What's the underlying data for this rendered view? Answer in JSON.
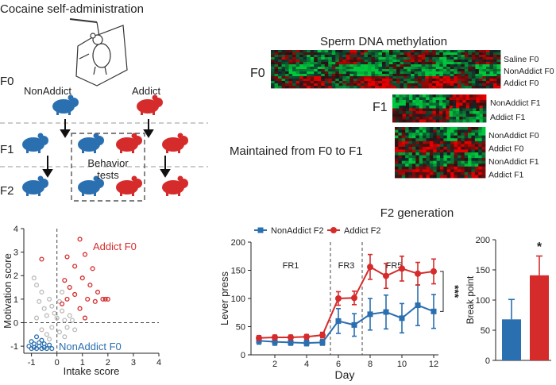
{
  "panel_a": {
    "title": "Cocaine self-administration",
    "gen_f0": "F0",
    "gen_f1": "F1",
    "gen_f2": "F2",
    "nonaddict_label": "NonAddict",
    "addict_label": "Addict",
    "behavior_label_1": "Behavior",
    "behavior_label_2": "tests",
    "colors": {
      "nonaddict": "#2a6fb0",
      "addict": "#d62b2b"
    }
  },
  "panel_b": {
    "title": "Sperm DNA methylation",
    "f0_label": "F0",
    "f0_rows": [
      "Saline F0",
      "NonAddict F0",
      "Addict F0"
    ],
    "f1_label": "F1",
    "f1_rows": [
      "NonAddict F1",
      "Addict F1"
    ],
    "maintained_label": "Maintained from F0 to F1",
    "maintained_rows": [
      "NonAddict F0",
      "Addict F0",
      "NonAddict F1",
      "Addict F1"
    ],
    "colors": {
      "high": "#e0262a",
      "low": "#2bb34a",
      "mid": "#000000"
    }
  },
  "chart_data": [
    {
      "type": "scatter",
      "xlabel": "Intake score",
      "ylabel": "Motivation score",
      "xlim": [
        -1.3,
        4
      ],
      "ylim": [
        -1.3,
        4
      ],
      "xticks": [
        "-1",
        "0",
        "1",
        "2",
        "3",
        "4"
      ],
      "yticks": [
        "-1",
        "0",
        "1",
        "2",
        "3",
        "4"
      ],
      "annotations": [
        "Addict F0",
        "NonAddict F0"
      ],
      "series": [
        {
          "color": "#2a6fb0",
          "points": [
            [
              -1.0,
              -1.1
            ],
            [
              -0.9,
              -1.05
            ],
            [
              -0.8,
              -1.1
            ],
            [
              -0.7,
              -1.0
            ],
            [
              -0.6,
              -1.1
            ],
            [
              -0.5,
              -1.05
            ],
            [
              -0.4,
              -1.1
            ],
            [
              -1.0,
              -0.8
            ],
            [
              -0.9,
              -0.9
            ],
            [
              -0.7,
              -0.85
            ],
            [
              -0.5,
              -0.9
            ],
            [
              -0.3,
              -0.95
            ],
            [
              -0.2,
              -1.1
            ],
            [
              -0.8,
              -0.6
            ],
            [
              -0.6,
              -0.75
            ],
            [
              -1.1,
              -1.0
            ]
          ]
        },
        {
          "color": "#bbbbbb",
          "points": [
            [
              -0.9,
              1.9
            ],
            [
              -0.8,
              1.6
            ],
            [
              -0.6,
              1.3
            ],
            [
              -0.7,
              0.9
            ],
            [
              -0.5,
              0.6
            ],
            [
              -0.4,
              0.3
            ],
            [
              -0.8,
              0.2
            ],
            [
              -0.3,
              1.0
            ],
            [
              -0.2,
              0.7
            ],
            [
              -0.1,
              0.4
            ],
            [
              0.1,
              0.9
            ],
            [
              0.2,
              0.5
            ],
            [
              0.3,
              0.1
            ],
            [
              0.4,
              -0.2
            ],
            [
              0.5,
              0.3
            ],
            [
              -0.6,
              -0.3
            ],
            [
              -0.4,
              -0.5
            ],
            [
              0.1,
              -0.4
            ],
            [
              0.3,
              -0.6
            ],
            [
              -0.2,
              -0.2
            ],
            [
              0.6,
              0.1
            ],
            [
              0.7,
              -0.3
            ],
            [
              0.2,
              1.3
            ],
            [
              -0.3,
              -0.7
            ],
            [
              0.0,
              0.2
            ]
          ]
        },
        {
          "color": "#d62b2b",
          "points": [
            [
              -0.6,
              2.7
            ],
            [
              0.4,
              2.8
            ],
            [
              0.9,
              3.55
            ],
            [
              0.7,
              2.4
            ],
            [
              1.1,
              2.9
            ],
            [
              0.3,
              1.8
            ],
            [
              0.5,
              1.5
            ],
            [
              1.0,
              1.9
            ],
            [
              1.3,
              1.6
            ],
            [
              1.6,
              1.3
            ],
            [
              1.8,
              1.0
            ],
            [
              1.5,
              0.9
            ],
            [
              1.9,
              1.0
            ],
            [
              2.0,
              1.0
            ],
            [
              1.2,
              1.0
            ],
            [
              0.9,
              0.6
            ],
            [
              1.1,
              0.2
            ],
            [
              0.2,
              0.8
            ],
            [
              0.7,
              1.2
            ],
            [
              1.4,
              2.3
            ],
            [
              0.4,
              1.0
            ]
          ]
        }
      ]
    },
    {
      "type": "line",
      "title": "F2 generation",
      "xlabel": "Day",
      "ylabel": "Lever press",
      "xlim": [
        0.5,
        12.3
      ],
      "ylim": [
        0,
        200
      ],
      "xticks": [
        2,
        4,
        6,
        8,
        10,
        12
      ],
      "yticks": [
        0,
        50,
        100,
        150,
        200
      ],
      "phase_labels": [
        "FR1",
        "FR3",
        "FR5"
      ],
      "phase_dividers": [
        5.5,
        7.5
      ],
      "significance": "***",
      "legend": "top-left",
      "series": [
        {
          "name": "NonAddict F2",
          "color": "#2a6fb0",
          "marker": "square",
          "x": [
            1,
            2,
            3,
            4,
            5,
            6,
            7,
            8,
            9,
            10,
            11,
            12
          ],
          "y": [
            25,
            23,
            22,
            21,
            22,
            60,
            53,
            72,
            76,
            65,
            88,
            77
          ],
          "err": [
            6,
            6,
            5,
            5,
            5,
            22,
            20,
            28,
            30,
            26,
            36,
            30
          ]
        },
        {
          "name": "Addict F2",
          "color": "#d62b2b",
          "marker": "circle",
          "x": [
            1,
            2,
            3,
            4,
            5,
            6,
            7,
            8,
            9,
            10,
            11,
            12
          ],
          "y": [
            30,
            31,
            31,
            32,
            35,
            100,
            101,
            156,
            140,
            153,
            144,
            148
          ],
          "err": [
            4,
            4,
            4,
            4,
            5,
            12,
            12,
            22,
            22,
            22,
            20,
            22
          ]
        }
      ]
    },
    {
      "type": "bar",
      "ylabel": "Break point",
      "ylim": [
        0,
        200
      ],
      "yticks": [
        0,
        50,
        100,
        150,
        200
      ],
      "significance": "*",
      "categories": [
        "NonAddict F2",
        "Addict F2"
      ],
      "values": [
        68,
        141
      ],
      "err": [
        33,
        32
      ],
      "colors": [
        "#2a6fb0",
        "#d62b2b"
      ]
    }
  ]
}
